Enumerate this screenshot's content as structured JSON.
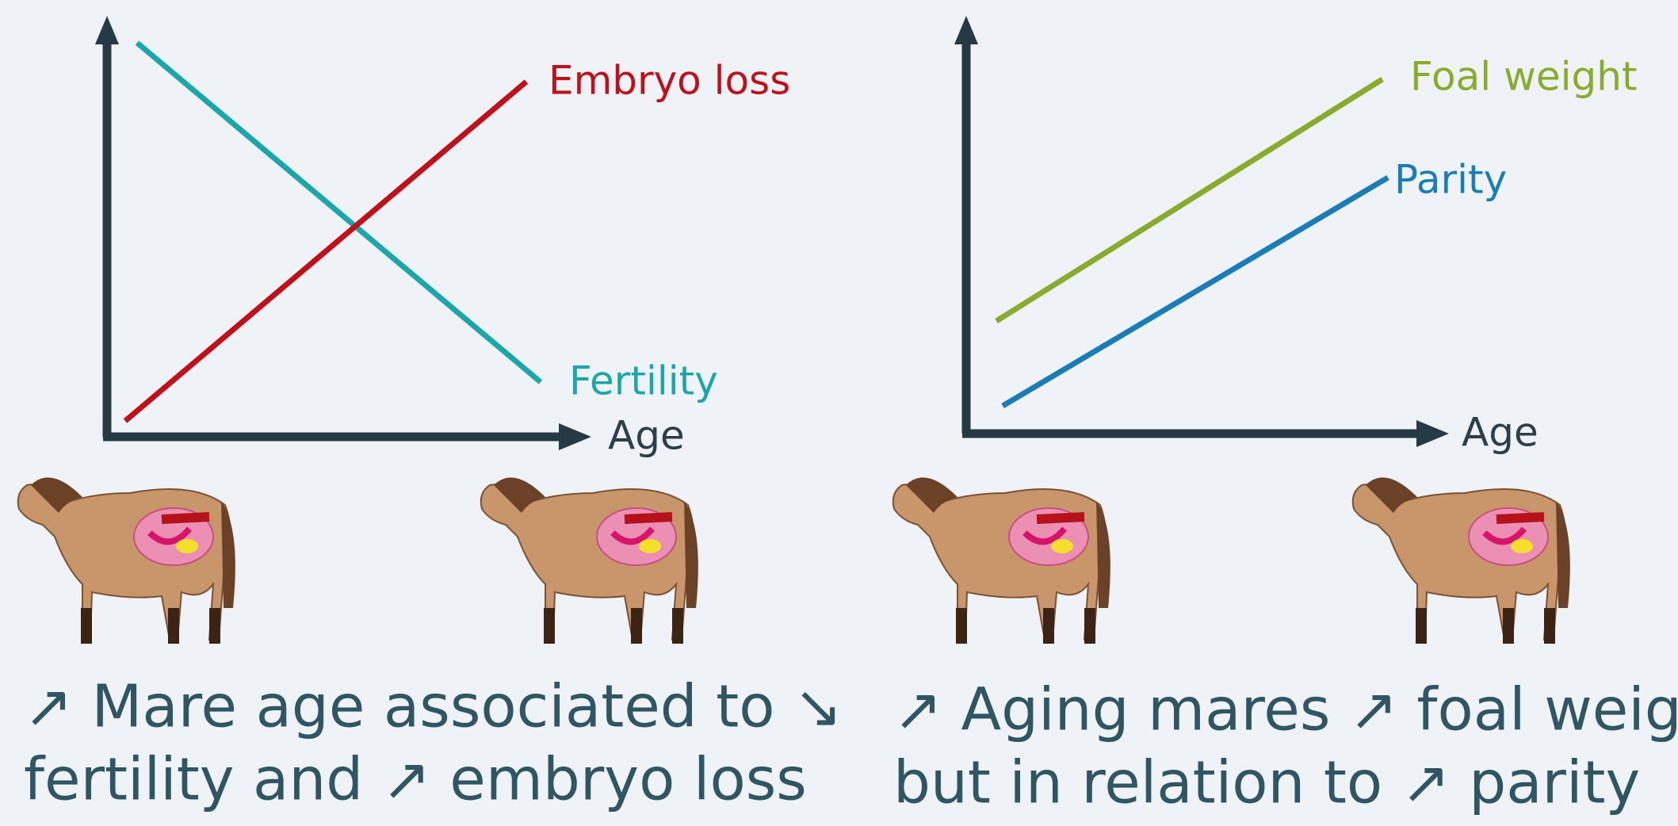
{
  "left_panel": {
    "series": [
      "Embryo loss",
      "Fertility"
    ],
    "x_axis_label": "Age",
    "caption": [
      "↗ Mare age associated to ↘",
      "fertility and ↗ embryo loss"
    ]
  },
  "right_panel": {
    "series": [
      "Foal weight",
      "Parity"
    ],
    "x_axis_label": "Age",
    "caption": [
      "↗ Aging mares ↗ foal weight",
      "but in relation to ↗ parity"
    ]
  }
}
